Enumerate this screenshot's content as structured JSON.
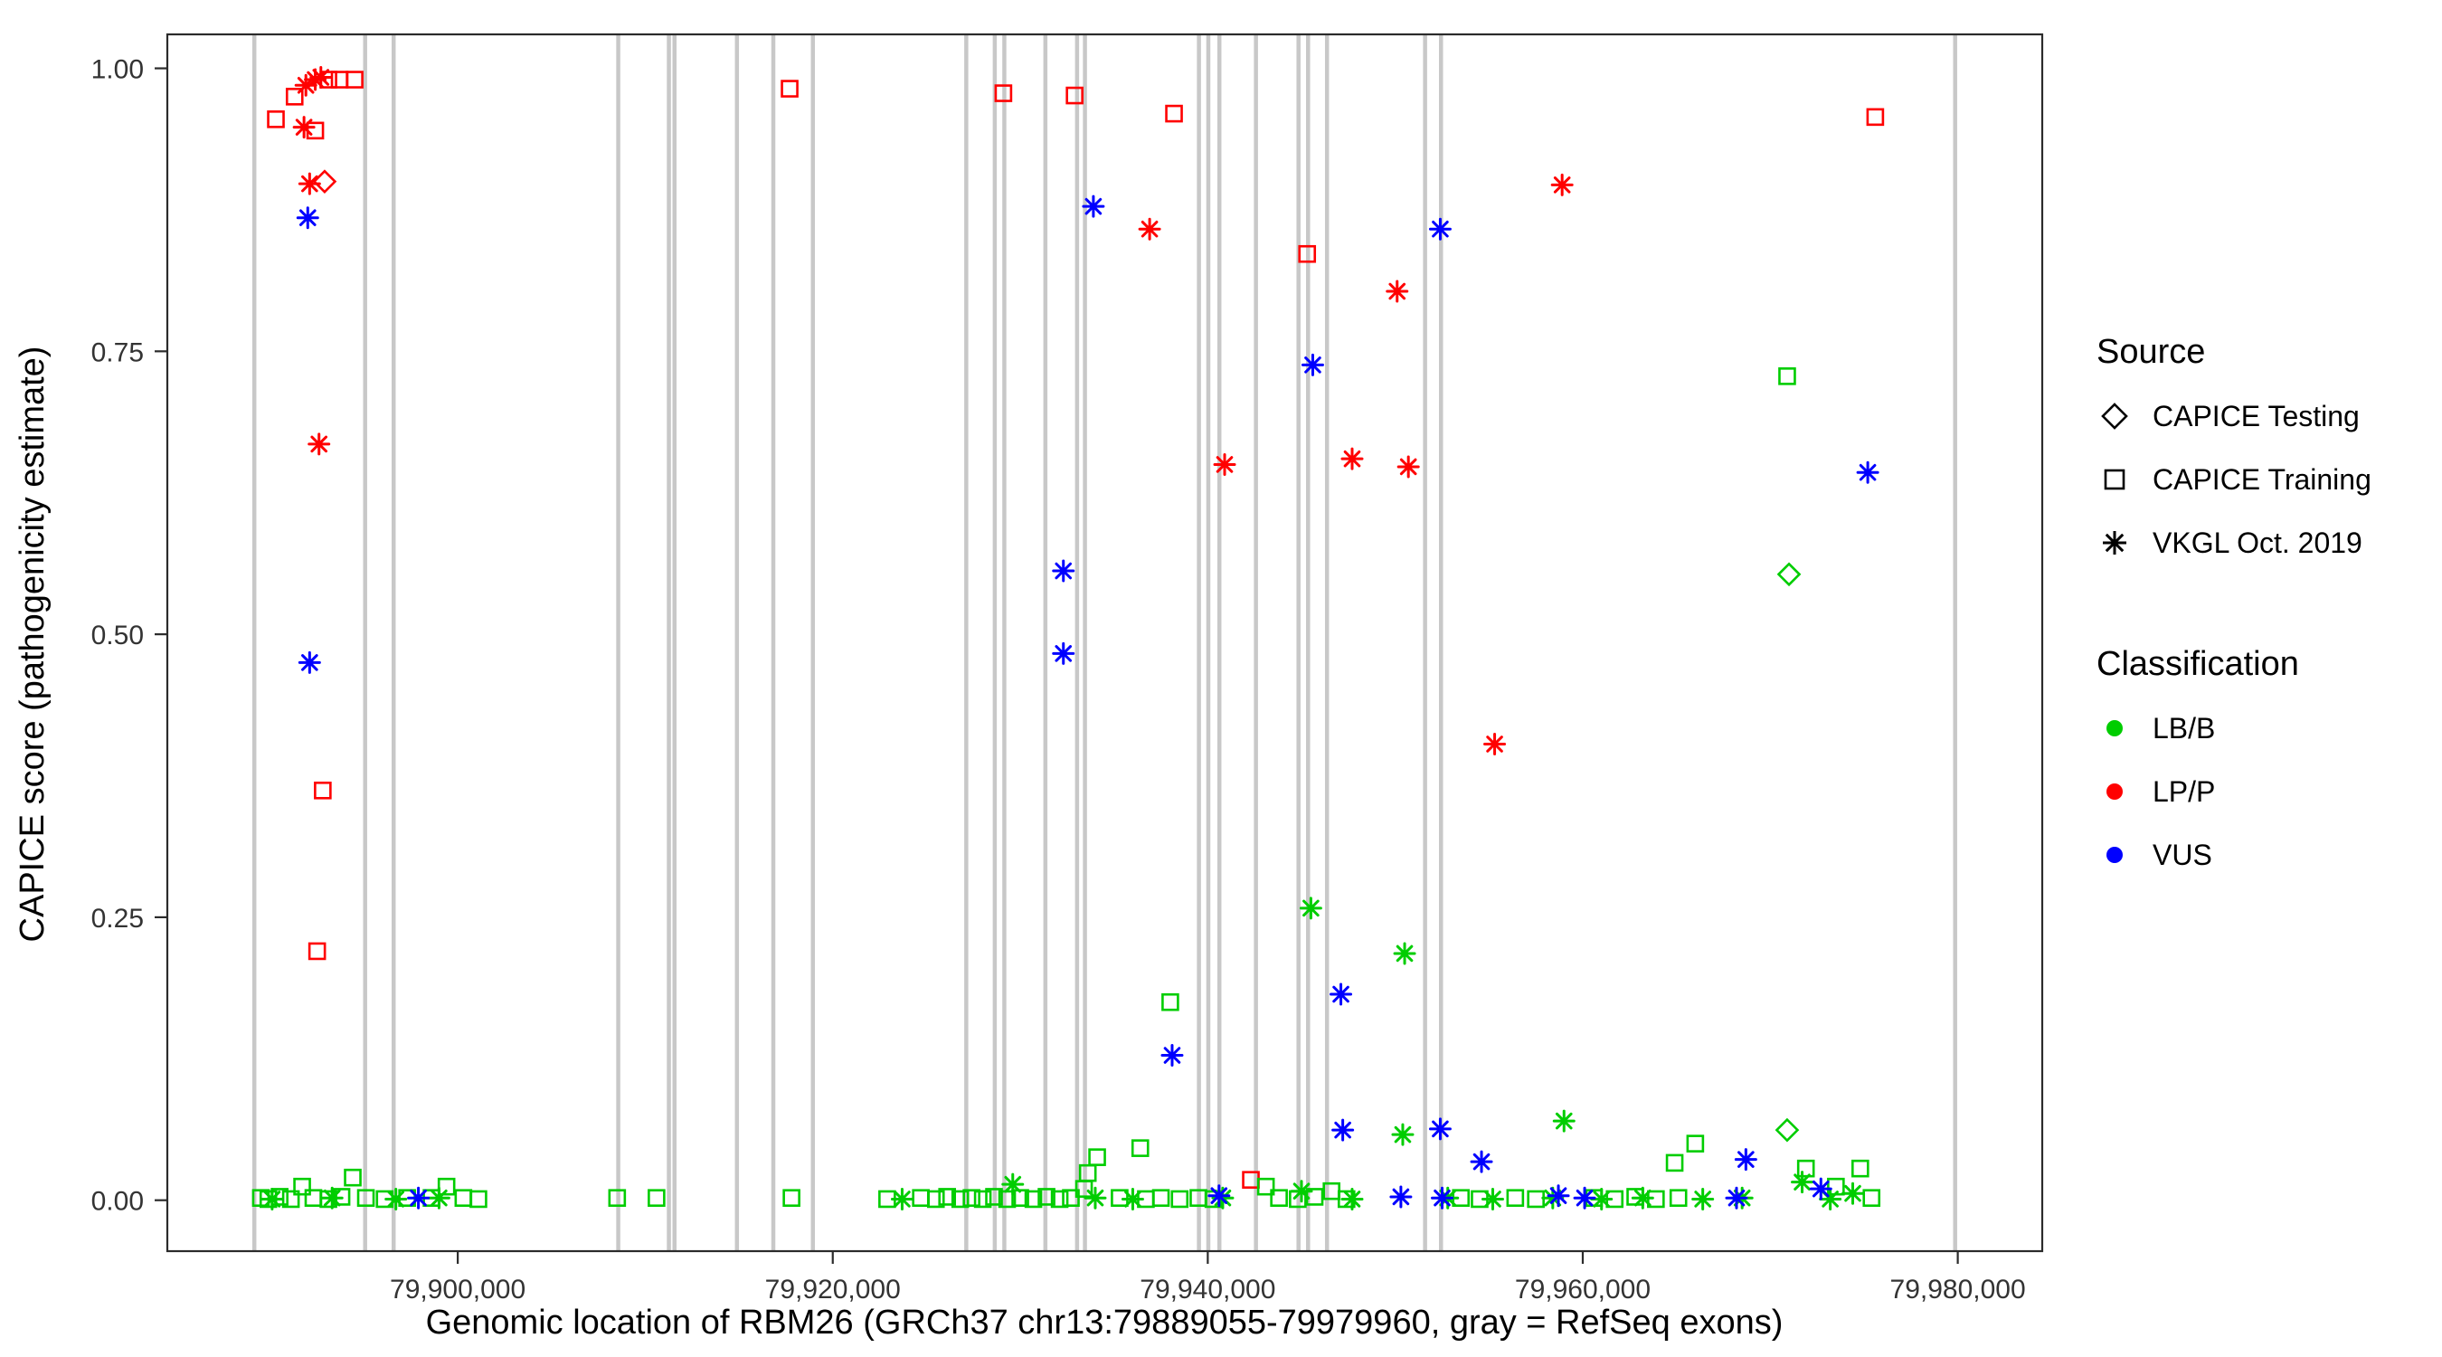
{
  "legend": {
    "source": {
      "title": "Source",
      "items": [
        {
          "label": "CAPICE Testing",
          "shape": "diamond"
        },
        {
          "label": "CAPICE Training",
          "shape": "square"
        },
        {
          "label": "VKGL Oct. 2019",
          "shape": "asterisk"
        }
      ]
    },
    "classification": {
      "title": "Classification",
      "items": [
        {
          "label": "LB/B",
          "color": "#00CD00"
        },
        {
          "label": "LP/P",
          "color": "#FF0000"
        },
        {
          "label": "VUS",
          "color": "#0000FF"
        }
      ]
    }
  },
  "chart_data": {
    "type": "scatter",
    "title": "",
    "xlabel": "Genomic location of RBM26 (GRCh37 chr13:79889055-79979960, gray = RefSeq exons)",
    "ylabel": "CAPICE score (pathogenicity estimate)",
    "xlim": [
      79884510,
      79984505
    ],
    "ylim": [
      -0.045,
      1.03
    ],
    "x_ticks": [
      {
        "value": 79900000,
        "label": "79,900,000"
      },
      {
        "value": 79920000,
        "label": "79,920,000"
      },
      {
        "value": 79940000,
        "label": "79,940,000"
      },
      {
        "value": 79960000,
        "label": "79,960,000"
      },
      {
        "value": 79980000,
        "label": "79,980,000"
      }
    ],
    "y_ticks": [
      {
        "value": 0.0,
        "label": "0.00"
      },
      {
        "value": 0.25,
        "label": "0.25"
      },
      {
        "value": 0.5,
        "label": "0.50"
      },
      {
        "value": 0.75,
        "label": "0.75"
      },
      {
        "value": 1.0,
        "label": "1.00"
      }
    ],
    "exon_color": "#C8C8C8",
    "exons": [
      79889150,
      79895060,
      79896580,
      79908560,
      79911260,
      79911560,
      79914890,
      79916830,
      79918940,
      79927120,
      79928640,
      79929150,
      79931340,
      79933030,
      79933450,
      79939530,
      79940030,
      79940620,
      79942570,
      79944840,
      79945350,
      79946360,
      79951590,
      79952440,
      79979860
    ],
    "colors": {
      "LB/B": "#00CD00",
      "LP/P": "#FF0000",
      "VUS": "#0000FF"
    },
    "source_shapes": {
      "test": "diamond",
      "train": "square",
      "vkgl": "asterisk"
    },
    "source_labels": {
      "test": "CAPICE Testing",
      "train": "CAPICE Training",
      "vkgl": "VKGL Oct. 2019"
    },
    "point_format": [
      "genomic_position",
      "capice_score",
      "classification",
      "source"
    ],
    "points": [
      [
        79890300,
        0.955,
        "LP/P",
        "train"
      ],
      [
        79891300,
        0.975,
        "LP/P",
        "train"
      ],
      [
        79891900,
        0.985,
        "LP/P",
        "vkgl"
      ],
      [
        79892400,
        0.99,
        "LP/P",
        "vkgl"
      ],
      [
        79892700,
        0.992,
        "LP/P",
        "vkgl"
      ],
      [
        79893100,
        0.99,
        "LP/P",
        "train"
      ],
      [
        79893700,
        0.99,
        "LP/P",
        "train"
      ],
      [
        79894500,
        0.99,
        "LP/P",
        "train"
      ],
      [
        79891800,
        0.948,
        "LP/P",
        "vkgl"
      ],
      [
        79892400,
        0.945,
        "LP/P",
        "train"
      ],
      [
        79892100,
        0.898,
        "LP/P",
        "vkgl"
      ],
      [
        79892900,
        0.9,
        "LP/P",
        "test"
      ],
      [
        79892000,
        0.868,
        "VUS",
        "vkgl"
      ],
      [
        79892600,
        0.668,
        "LP/P",
        "vkgl"
      ],
      [
        79892100,
        0.475,
        "VUS",
        "vkgl"
      ],
      [
        79892800,
        0.362,
        "LP/P",
        "train"
      ],
      [
        79892500,
        0.22,
        "LP/P",
        "train"
      ],
      [
        79917700,
        0.982,
        "LP/P",
        "train"
      ],
      [
        79929100,
        0.978,
        "LP/P",
        "train"
      ],
      [
        79932900,
        0.976,
        "LP/P",
        "train"
      ],
      [
        79933900,
        0.878,
        "VUS",
        "vkgl"
      ],
      [
        79936900,
        0.858,
        "LP/P",
        "vkgl"
      ],
      [
        79938200,
        0.96,
        "LP/P",
        "train"
      ],
      [
        79932300,
        0.556,
        "VUS",
        "vkgl"
      ],
      [
        79932300,
        0.483,
        "VUS",
        "vkgl"
      ],
      [
        79940900,
        0.65,
        "LP/P",
        "vkgl"
      ],
      [
        79945300,
        0.836,
        "LP/P",
        "train"
      ],
      [
        79945600,
        0.738,
        "VUS",
        "vkgl"
      ],
      [
        79947700,
        0.655,
        "LP/P",
        "vkgl"
      ],
      [
        79950100,
        0.803,
        "LP/P",
        "vkgl"
      ],
      [
        79950700,
        0.648,
        "LP/P",
        "vkgl"
      ],
      [
        79952400,
        0.858,
        "VUS",
        "vkgl"
      ],
      [
        79955300,
        0.403,
        "LP/P",
        "vkgl"
      ],
      [
        79958900,
        0.897,
        "LP/P",
        "vkgl"
      ],
      [
        79970900,
        0.728,
        "LB/B",
        "train"
      ],
      [
        79971000,
        0.553,
        "LB/B",
        "test"
      ],
      [
        79975200,
        0.643,
        "VUS",
        "vkgl"
      ],
      [
        79975600,
        0.957,
        "LP/P",
        "train"
      ],
      [
        79938000,
        0.175,
        "LB/B",
        "train"
      ],
      [
        79938100,
        0.128,
        "VUS",
        "vkgl"
      ],
      [
        79936400,
        0.046,
        "LB/B",
        "train"
      ],
      [
        79945500,
        0.258,
        "LB/B",
        "vkgl"
      ],
      [
        79947100,
        0.182,
        "VUS",
        "vkgl"
      ],
      [
        79950500,
        0.218,
        "LB/B",
        "vkgl"
      ],
      [
        79947200,
        0.062,
        "VUS",
        "vkgl"
      ],
      [
        79950400,
        0.058,
        "LB/B",
        "vkgl"
      ],
      [
        79952400,
        0.063,
        "VUS",
        "vkgl"
      ],
      [
        79959000,
        0.07,
        "LB/B",
        "vkgl"
      ],
      [
        79954600,
        0.034,
        "VUS",
        "vkgl"
      ],
      [
        79970900,
        0.062,
        "LB/B",
        "test"
      ],
      [
        79964900,
        0.033,
        "LB/B",
        "train"
      ],
      [
        79966000,
        0.05,
        "LB/B",
        "train"
      ],
      [
        79968700,
        0.036,
        "VUS",
        "vkgl"
      ],
      [
        79971900,
        0.028,
        "LB/B",
        "train"
      ],
      [
        79974800,
        0.028,
        "LB/B",
        "train"
      ],
      [
        79942300,
        0.018,
        "LP/P",
        "train"
      ],
      [
        79933600,
        0.024,
        "LB/B",
        "train"
      ],
      [
        79934100,
        0.038,
        "LB/B",
        "train"
      ],
      [
        79943100,
        0.012,
        "LB/B",
        "train"
      ],
      [
        79889500,
        0.002,
        "LB/B",
        "train"
      ],
      [
        79889900,
        0.001,
        "LB/B",
        "train"
      ],
      [
        79890500,
        0.003,
        "LB/B",
        "train"
      ],
      [
        79891100,
        0.001,
        "LB/B",
        "train"
      ],
      [
        79891700,
        0.012,
        "LB/B",
        "train"
      ],
      [
        79892300,
        0.002,
        "LB/B",
        "train"
      ],
      [
        79893100,
        0.001,
        "LB/B",
        "train"
      ],
      [
        79893800,
        0.003,
        "LB/B",
        "train"
      ],
      [
        79894400,
        0.02,
        "LB/B",
        "train"
      ],
      [
        79895100,
        0.002,
        "LB/B",
        "train"
      ],
      [
        79896100,
        0.001,
        "LB/B",
        "train"
      ],
      [
        79897300,
        0.002,
        "LB/B",
        "train"
      ],
      [
        79898600,
        0.002,
        "LB/B",
        "train"
      ],
      [
        79899400,
        0.012,
        "LB/B",
        "train"
      ],
      [
        79900300,
        0.002,
        "LB/B",
        "train"
      ],
      [
        79901100,
        0.001,
        "LB/B",
        "train"
      ],
      [
        79908500,
        0.002,
        "LB/B",
        "train"
      ],
      [
        79910600,
        0.002,
        "LB/B",
        "train"
      ],
      [
        79917800,
        0.002,
        "LB/B",
        "train"
      ],
      [
        79922900,
        0.001,
        "LB/B",
        "train"
      ],
      [
        79924700,
        0.002,
        "LB/B",
        "train"
      ],
      [
        79925500,
        0.001,
        "LB/B",
        "train"
      ],
      [
        79926100,
        0.003,
        "LB/B",
        "train"
      ],
      [
        79926800,
        0.001,
        "LB/B",
        "train"
      ],
      [
        79927400,
        0.002,
        "LB/B",
        "train"
      ],
      [
        79928000,
        0.001,
        "LB/B",
        "train"
      ],
      [
        79928600,
        0.003,
        "LB/B",
        "train"
      ],
      [
        79929300,
        0.001,
        "LB/B",
        "train"
      ],
      [
        79930000,
        0.002,
        "LB/B",
        "train"
      ],
      [
        79930700,
        0.001,
        "LB/B",
        "train"
      ],
      [
        79931400,
        0.003,
        "LB/B",
        "train"
      ],
      [
        79932100,
        0.001,
        "LB/B",
        "train"
      ],
      [
        79932700,
        0.002,
        "LB/B",
        "train"
      ],
      [
        79933400,
        0.01,
        "LB/B",
        "train"
      ],
      [
        79935300,
        0.002,
        "LB/B",
        "train"
      ],
      [
        79936700,
        0.001,
        "LB/B",
        "train"
      ],
      [
        79937500,
        0.002,
        "LB/B",
        "train"
      ],
      [
        79938500,
        0.001,
        "LB/B",
        "train"
      ],
      [
        79939500,
        0.002,
        "LB/B",
        "train"
      ],
      [
        79940300,
        0.001,
        "LB/B",
        "train"
      ],
      [
        79943800,
        0.002,
        "LB/B",
        "train"
      ],
      [
        79944800,
        0.001,
        "LB/B",
        "train"
      ],
      [
        79945700,
        0.003,
        "LB/B",
        "train"
      ],
      [
        79946600,
        0.008,
        "LB/B",
        "train"
      ],
      [
        79947400,
        0.001,
        "LB/B",
        "train"
      ],
      [
        79953500,
        0.002,
        "LB/B",
        "train"
      ],
      [
        79954500,
        0.001,
        "LB/B",
        "train"
      ],
      [
        79956400,
        0.002,
        "LB/B",
        "train"
      ],
      [
        79957500,
        0.001,
        "LB/B",
        "train"
      ],
      [
        79960600,
        0.002,
        "LB/B",
        "train"
      ],
      [
        79961700,
        0.001,
        "LB/B",
        "train"
      ],
      [
        79962800,
        0.003,
        "LB/B",
        "train"
      ],
      [
        79963900,
        0.001,
        "LB/B",
        "train"
      ],
      [
        79965100,
        0.002,
        "LB/B",
        "train"
      ],
      [
        79973500,
        0.012,
        "LB/B",
        "train"
      ],
      [
        79975400,
        0.002,
        "LB/B",
        "train"
      ],
      [
        79890100,
        0.001,
        "LB/B",
        "vkgl"
      ],
      [
        79893300,
        0.002,
        "LB/B",
        "vkgl"
      ],
      [
        79896700,
        0.001,
        "LB/B",
        "vkgl"
      ],
      [
        79899000,
        0.002,
        "LB/B",
        "vkgl"
      ],
      [
        79923700,
        0.001,
        "LB/B",
        "vkgl"
      ],
      [
        79929600,
        0.014,
        "LB/B",
        "vkgl"
      ],
      [
        79934000,
        0.002,
        "LB/B",
        "vkgl"
      ],
      [
        79936000,
        0.001,
        "LB/B",
        "vkgl"
      ],
      [
        79940800,
        0.002,
        "LB/B",
        "vkgl"
      ],
      [
        79945000,
        0.008,
        "LB/B",
        "vkgl"
      ],
      [
        79947700,
        0.001,
        "LB/B",
        "vkgl"
      ],
      [
        79952800,
        0.002,
        "LB/B",
        "vkgl"
      ],
      [
        79955200,
        0.001,
        "LB/B",
        "vkgl"
      ],
      [
        79958400,
        0.002,
        "LB/B",
        "vkgl"
      ],
      [
        79961000,
        0.001,
        "LB/B",
        "vkgl"
      ],
      [
        79963200,
        0.002,
        "LB/B",
        "vkgl"
      ],
      [
        79966400,
        0.001,
        "LB/B",
        "vkgl"
      ],
      [
        79968500,
        0.002,
        "LB/B",
        "vkgl"
      ],
      [
        79971700,
        0.016,
        "LB/B",
        "vkgl"
      ],
      [
        79973200,
        0.001,
        "LB/B",
        "vkgl"
      ],
      [
        79974400,
        0.006,
        "LB/B",
        "vkgl"
      ],
      [
        79897900,
        0.002,
        "VUS",
        "vkgl"
      ],
      [
        79940600,
        0.004,
        "VUS",
        "vkgl"
      ],
      [
        79950300,
        0.003,
        "VUS",
        "vkgl"
      ],
      [
        79952500,
        0.002,
        "VUS",
        "vkgl"
      ],
      [
        79958700,
        0.004,
        "VUS",
        "vkgl"
      ],
      [
        79960100,
        0.002,
        "VUS",
        "vkgl"
      ],
      [
        79968200,
        0.002,
        "VUS",
        "vkgl"
      ],
      [
        79972700,
        0.01,
        "VUS",
        "vkgl"
      ]
    ]
  }
}
